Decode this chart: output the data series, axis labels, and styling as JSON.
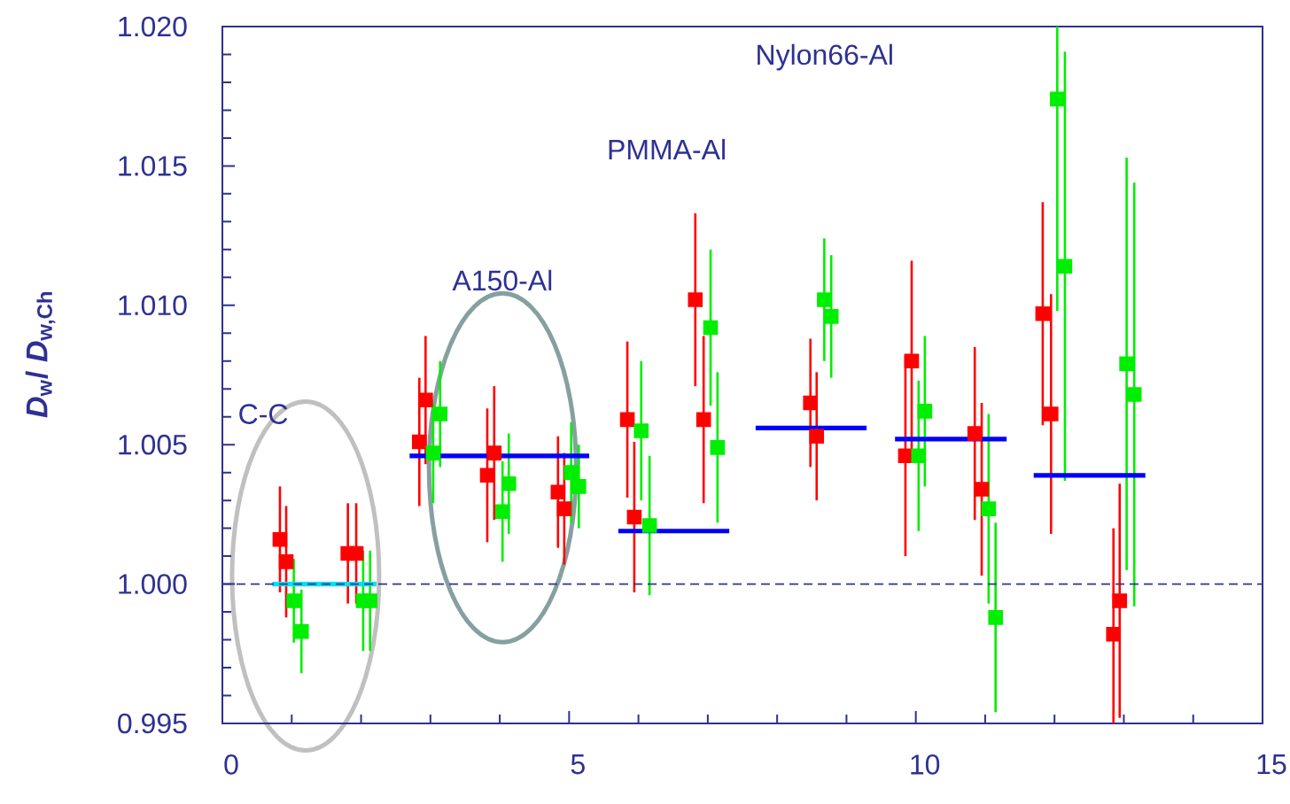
{
  "chart_data": {
    "type": "scatter",
    "ylabel": "*D*$_{w}$/ *D*$_{w,Ch}$",
    "xlim": [
      0,
      15
    ],
    "xticks": [
      0,
      5,
      10,
      15
    ],
    "ylim": [
      0.995,
      1.02
    ],
    "yticks": [
      {
        "value": 0.995,
        "label": "0.995"
      },
      {
        "value": 1.0,
        "label": "1.000"
      },
      {
        "value": 1.005,
        "label": "1.005"
      },
      {
        "value": 1.01,
        "label": "1.010"
      },
      {
        "value": 1.015,
        "label": "1.015"
      },
      {
        "value": 1.02,
        "label": "1.020"
      }
    ],
    "series": [
      {
        "color": "#ff0000",
        "marker": "square",
        "x": [
          0.83,
          1.81,
          2.84,
          3.82,
          4.84,
          5.84,
          6.82,
          8.48,
          9.85,
          10.85,
          11.83,
          12.85
        ],
        "values": [
          1.0016,
          1.0011,
          1.0051,
          1.0039,
          1.0033,
          1.0059,
          1.0102,
          1.0065,
          1.0046,
          1.0054,
          1.0097,
          0.9982
        ],
        "errors": [
          0.0019,
          0.0018,
          0.0023,
          0.0024,
          0.002,
          0.0028,
          0.0031,
          0.0023,
          0.0036,
          0.0031,
          0.004,
          [
            0.995,
            1.002
          ]
        ]
      },
      {
        "color": "#ff0000",
        "marker": "square",
        "x": [
          0.92,
          1.93,
          2.93,
          3.92,
          4.93,
          5.94,
          6.94,
          8.57,
          9.94,
          10.95,
          11.95,
          12.94
        ],
        "values": [
          1.0008,
          1.0011,
          1.0066,
          1.0047,
          1.0027,
          1.0024,
          1.0059,
          1.0053,
          1.008,
          1.0034,
          1.0061,
          0.9994
        ],
        "errors": [
          0.002,
          0.0018,
          0.0023,
          0.0024,
          0.002,
          0.0027,
          0.003,
          0.0023,
          0.0036,
          0.0031,
          0.0043,
          0.0042
        ]
      },
      {
        "color": "#00ee00",
        "marker": "square",
        "x": [
          1.03,
          2.03,
          3.04,
          4.04,
          5.03,
          6.04,
          7.04,
          8.68,
          10.04,
          11.05,
          12.04,
          13.04
        ],
        "values": [
          0.9994,
          0.9994,
          1.0047,
          1.0026,
          1.004,
          1.0055,
          1.0092,
          1.0102,
          1.0046,
          1.0027,
          1.0174,
          1.0079
        ],
        "errors": [
          0.0015,
          0.0018,
          0.0018,
          0.0018,
          0.0018,
          0.0025,
          0.0028,
          0.0022,
          0.0027,
          0.0034,
          [
            1.0098,
            1.02
          ],
          0.0074
        ]
      },
      {
        "color": "#00ee00",
        "marker": "square",
        "x": [
          1.14,
          2.13,
          3.14,
          4.13,
          5.14,
          6.16,
          7.14,
          8.78,
          10.13,
          11.15,
          12.15,
          13.15
        ],
        "values": [
          0.9983,
          0.9994,
          1.0061,
          1.0036,
          1.0035,
          1.0021,
          1.0049,
          1.0096,
          1.0062,
          0.9988,
          1.0114,
          1.0068
        ],
        "errors": [
          0.0015,
          0.0018,
          0.0019,
          0.0018,
          0.0015,
          0.0025,
          0.0027,
          0.0022,
          0.0027,
          0.0034,
          0.0077,
          0.0076
        ]
      },
      {
        "type": "line",
        "color": "#0000ff",
        "x": [
          2.7,
          5.29,
          null,
          5.71,
          7.31,
          null,
          7.69,
          9.29,
          null,
          9.7,
          11.31,
          null,
          11.7,
          13.31
        ],
        "values": [
          1.0046,
          1.0046,
          null,
          1.0019,
          1.0019,
          null,
          1.0056,
          1.0056,
          null,
          1.0052,
          1.0052,
          null,
          1.0039,
          1.0039
        ]
      },
      {
        "type": "line",
        "color": "#00e0f0",
        "x": [
          0.72,
          2.22
        ],
        "values": [
          1.0,
          1.0
        ]
      }
    ],
    "ref_lines": [
      {
        "axis": "y",
        "value": 1.0,
        "color": "#33338f",
        "line_style": "dashed"
      }
    ],
    "annotations": [
      "C-C",
      "A150-Al",
      "PMMA-Al",
      "Nylon66-Al"
    ]
  }
}
